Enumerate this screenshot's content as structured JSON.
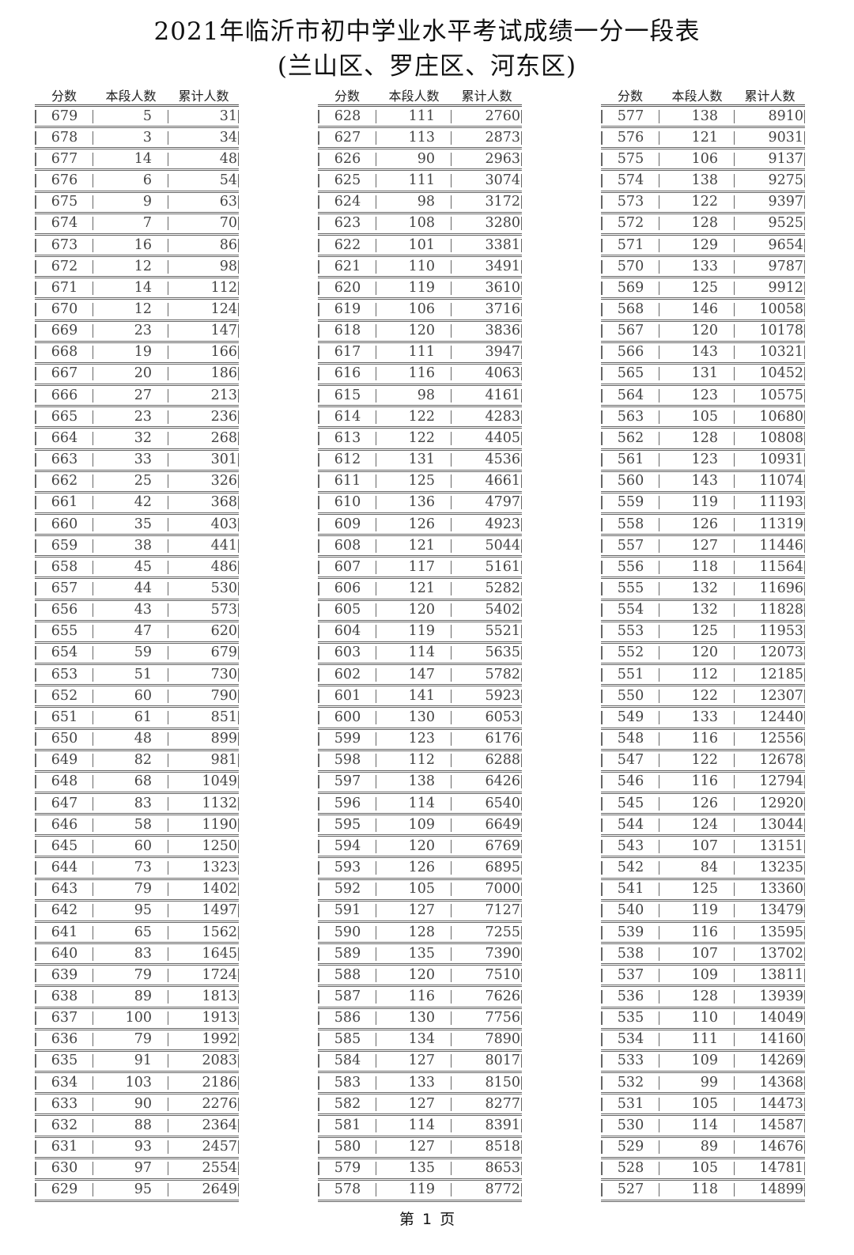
{
  "title": "2021年临沂市初中学业水平考试成绩一分一段表",
  "subtitle": "(兰山区、罗庄区、河东区)",
  "headers": {
    "score": "分数",
    "count": "本段人数",
    "cumulative": "累计人数"
  },
  "tables": [
    {
      "rows": [
        [
          "679",
          "5",
          "31"
        ],
        [
          "678",
          "3",
          "34"
        ],
        [
          "677",
          "14",
          "48"
        ],
        [
          "676",
          "6",
          "54"
        ],
        [
          "675",
          "9",
          "63"
        ],
        [
          "674",
          "7",
          "70"
        ],
        [
          "673",
          "16",
          "86"
        ],
        [
          "672",
          "12",
          "98"
        ],
        [
          "671",
          "14",
          "112"
        ],
        [
          "670",
          "12",
          "124"
        ],
        [
          "669",
          "23",
          "147"
        ],
        [
          "668",
          "19",
          "166"
        ],
        [
          "667",
          "20",
          "186"
        ],
        [
          "666",
          "27",
          "213"
        ],
        [
          "665",
          "23",
          "236"
        ],
        [
          "664",
          "32",
          "268"
        ],
        [
          "663",
          "33",
          "301"
        ],
        [
          "662",
          "25",
          "326"
        ],
        [
          "661",
          "42",
          "368"
        ],
        [
          "660",
          "35",
          "403"
        ],
        [
          "659",
          "38",
          "441"
        ],
        [
          "658",
          "45",
          "486"
        ],
        [
          "657",
          "44",
          "530"
        ],
        [
          "656",
          "43",
          "573"
        ],
        [
          "655",
          "47",
          "620"
        ],
        [
          "654",
          "59",
          "679"
        ],
        [
          "653",
          "51",
          "730"
        ],
        [
          "652",
          "60",
          "790"
        ],
        [
          "651",
          "61",
          "851"
        ],
        [
          "650",
          "48",
          "899"
        ],
        [
          "649",
          "82",
          "981"
        ],
        [
          "648",
          "68",
          "1049"
        ],
        [
          "647",
          "83",
          "1132"
        ],
        [
          "646",
          "58",
          "1190"
        ],
        [
          "645",
          "60",
          "1250"
        ],
        [
          "644",
          "73",
          "1323"
        ],
        [
          "643",
          "79",
          "1402"
        ],
        [
          "642",
          "95",
          "1497"
        ],
        [
          "641",
          "65",
          "1562"
        ],
        [
          "640",
          "83",
          "1645"
        ],
        [
          "639",
          "79",
          "1724"
        ],
        [
          "638",
          "89",
          "1813"
        ],
        [
          "637",
          "100",
          "1913"
        ],
        [
          "636",
          "79",
          "1992"
        ],
        [
          "635",
          "91",
          "2083"
        ],
        [
          "634",
          "103",
          "2186"
        ],
        [
          "633",
          "90",
          "2276"
        ],
        [
          "632",
          "88",
          "2364"
        ],
        [
          "631",
          "93",
          "2457"
        ],
        [
          "630",
          "97",
          "2554"
        ],
        [
          "629",
          "95",
          "2649"
        ]
      ]
    },
    {
      "rows": [
        [
          "628",
          "111",
          "2760"
        ],
        [
          "627",
          "113",
          "2873"
        ],
        [
          "626",
          "90",
          "2963"
        ],
        [
          "625",
          "111",
          "3074"
        ],
        [
          "624",
          "98",
          "3172"
        ],
        [
          "623",
          "108",
          "3280"
        ],
        [
          "622",
          "101",
          "3381"
        ],
        [
          "621",
          "110",
          "3491"
        ],
        [
          "620",
          "119",
          "3610"
        ],
        [
          "619",
          "106",
          "3716"
        ],
        [
          "618",
          "120",
          "3836"
        ],
        [
          "617",
          "111",
          "3947"
        ],
        [
          "616",
          "116",
          "4063"
        ],
        [
          "615",
          "98",
          "4161"
        ],
        [
          "614",
          "122",
          "4283"
        ],
        [
          "613",
          "122",
          "4405"
        ],
        [
          "612",
          "131",
          "4536"
        ],
        [
          "611",
          "125",
          "4661"
        ],
        [
          "610",
          "136",
          "4797"
        ],
        [
          "609",
          "126",
          "4923"
        ],
        [
          "608",
          "121",
          "5044"
        ],
        [
          "607",
          "117",
          "5161"
        ],
        [
          "606",
          "121",
          "5282"
        ],
        [
          "605",
          "120",
          "5402"
        ],
        [
          "604",
          "119",
          "5521"
        ],
        [
          "603",
          "114",
          "5635"
        ],
        [
          "602",
          "147",
          "5782"
        ],
        [
          "601",
          "141",
          "5923"
        ],
        [
          "600",
          "130",
          "6053"
        ],
        [
          "599",
          "123",
          "6176"
        ],
        [
          "598",
          "112",
          "6288"
        ],
        [
          "597",
          "138",
          "6426"
        ],
        [
          "596",
          "114",
          "6540"
        ],
        [
          "595",
          "109",
          "6649"
        ],
        [
          "594",
          "120",
          "6769"
        ],
        [
          "593",
          "126",
          "6895"
        ],
        [
          "592",
          "105",
          "7000"
        ],
        [
          "591",
          "127",
          "7127"
        ],
        [
          "590",
          "128",
          "7255"
        ],
        [
          "589",
          "135",
          "7390"
        ],
        [
          "588",
          "120",
          "7510"
        ],
        [
          "587",
          "116",
          "7626"
        ],
        [
          "586",
          "130",
          "7756"
        ],
        [
          "585",
          "134",
          "7890"
        ],
        [
          "584",
          "127",
          "8017"
        ],
        [
          "583",
          "133",
          "8150"
        ],
        [
          "582",
          "127",
          "8277"
        ],
        [
          "581",
          "114",
          "8391"
        ],
        [
          "580",
          "127",
          "8518"
        ],
        [
          "579",
          "135",
          "8653"
        ],
        [
          "578",
          "119",
          "8772"
        ]
      ]
    },
    {
      "rows": [
        [
          "577",
          "138",
          "8910"
        ],
        [
          "576",
          "121",
          "9031"
        ],
        [
          "575",
          "106",
          "9137"
        ],
        [
          "574",
          "138",
          "9275"
        ],
        [
          "573",
          "122",
          "9397"
        ],
        [
          "572",
          "128",
          "9525"
        ],
        [
          "571",
          "129",
          "9654"
        ],
        [
          "570",
          "133",
          "9787"
        ],
        [
          "569",
          "125",
          "9912"
        ],
        [
          "568",
          "146",
          "10058"
        ],
        [
          "567",
          "120",
          "10178"
        ],
        [
          "566",
          "143",
          "10321"
        ],
        [
          "565",
          "131",
          "10452"
        ],
        [
          "564",
          "123",
          "10575"
        ],
        [
          "563",
          "105",
          "10680"
        ],
        [
          "562",
          "128",
          "10808"
        ],
        [
          "561",
          "123",
          "10931"
        ],
        [
          "560",
          "143",
          "11074"
        ],
        [
          "559",
          "119",
          "11193"
        ],
        [
          "558",
          "126",
          "11319"
        ],
        [
          "557",
          "127",
          "11446"
        ],
        [
          "556",
          "118",
          "11564"
        ],
        [
          "555",
          "132",
          "11696"
        ],
        [
          "554",
          "132",
          "11828"
        ],
        [
          "553",
          "125",
          "11953"
        ],
        [
          "552",
          "120",
          "12073"
        ],
        [
          "551",
          "112",
          "12185"
        ],
        [
          "550",
          "122",
          "12307"
        ],
        [
          "549",
          "133",
          "12440"
        ],
        [
          "548",
          "116",
          "12556"
        ],
        [
          "547",
          "122",
          "12678"
        ],
        [
          "546",
          "116",
          "12794"
        ],
        [
          "545",
          "126",
          "12920"
        ],
        [
          "544",
          "124",
          "13044"
        ],
        [
          "543",
          "107",
          "13151"
        ],
        [
          "542",
          "84",
          "13235"
        ],
        [
          "541",
          "125",
          "13360"
        ],
        [
          "540",
          "119",
          "13479"
        ],
        [
          "539",
          "116",
          "13595"
        ],
        [
          "538",
          "107",
          "13702"
        ],
        [
          "537",
          "109",
          "13811"
        ],
        [
          "536",
          "128",
          "13939"
        ],
        [
          "535",
          "110",
          "14049"
        ],
        [
          "534",
          "111",
          "14160"
        ],
        [
          "533",
          "109",
          "14269"
        ],
        [
          "532",
          "99",
          "14368"
        ],
        [
          "531",
          "105",
          "14473"
        ],
        [
          "530",
          "114",
          "14587"
        ],
        [
          "529",
          "89",
          "14676"
        ],
        [
          "528",
          "105",
          "14781"
        ],
        [
          "527",
          "118",
          "14899"
        ]
      ]
    }
  ],
  "footer": "第 1 页"
}
